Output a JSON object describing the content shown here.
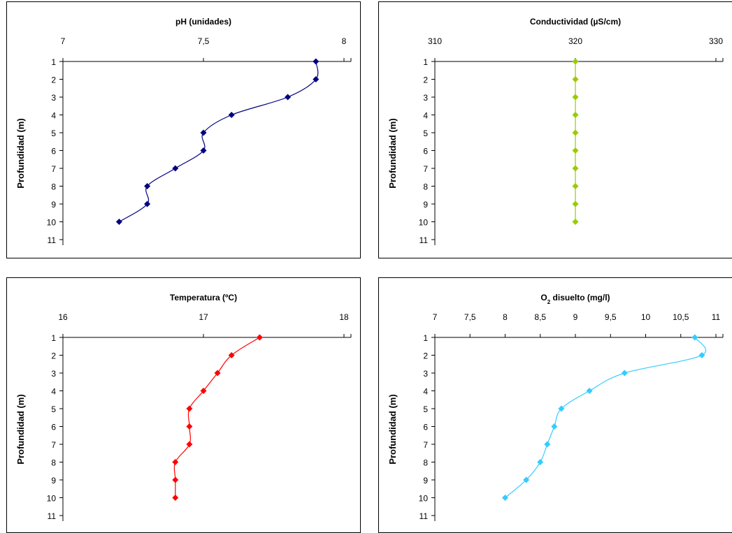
{
  "chart_data": [
    {
      "type": "line",
      "title": "pH (unidades)",
      "ylabel": "Profundidad (m)",
      "xlabel": "",
      "x_ticks": [
        "7",
        "7,5",
        "8"
      ],
      "xlim": [
        7,
        8
      ],
      "y_ticks": [
        "1",
        "2",
        "3",
        "4",
        "5",
        "6",
        "7",
        "8",
        "9",
        "10",
        "11"
      ],
      "ylim": [
        1,
        11
      ],
      "y_reversed": true,
      "grid": false,
      "color": "#00007f",
      "series": [
        {
          "depth": [
            1,
            2,
            3,
            4,
            5,
            6,
            7,
            8,
            9,
            10
          ],
          "values": [
            7.9,
            7.9,
            7.8,
            7.6,
            7.5,
            7.5,
            7.4,
            7.3,
            7.3,
            7.2
          ]
        }
      ]
    },
    {
      "type": "line",
      "title": "Conductividad (µS/cm)",
      "ylabel": "Profundidad (m)",
      "xlabel": "",
      "x_ticks": [
        "310",
        "320",
        "330"
      ],
      "xlim": [
        310,
        330
      ],
      "y_ticks": [
        "1",
        "2",
        "3",
        "4",
        "5",
        "6",
        "7",
        "8",
        "9",
        "10",
        "11"
      ],
      "ylim": [
        1,
        11
      ],
      "y_reversed": true,
      "grid": false,
      "color": "#99cc00",
      "series": [
        {
          "depth": [
            1,
            2,
            3,
            4,
            5,
            6,
            7,
            8,
            9,
            10
          ],
          "values": [
            320,
            320,
            320,
            320,
            320,
            320,
            320,
            320,
            320,
            320
          ]
        }
      ]
    },
    {
      "type": "line",
      "title": "Temperatura (ºC)",
      "ylabel": "Profundidad (m)",
      "xlabel": "",
      "x_ticks": [
        "16",
        "17",
        "18"
      ],
      "xlim": [
        16,
        18
      ],
      "y_ticks": [
        "1",
        "2",
        "3",
        "4",
        "5",
        "6",
        "7",
        "8",
        "9",
        "10",
        "11"
      ],
      "ylim": [
        1,
        11
      ],
      "y_reversed": true,
      "grid": false,
      "color": "#ff0000",
      "series": [
        {
          "depth": [
            1,
            2,
            3,
            4,
            5,
            6,
            7,
            8,
            9,
            10
          ],
          "values": [
            17.4,
            17.2,
            17.1,
            17.0,
            16.9,
            16.9,
            16.9,
            16.8,
            16.8,
            16.8
          ]
        }
      ]
    },
    {
      "type": "line",
      "title": "O2 disuelto (mg/l)",
      "ylabel": "Profundidad (m)",
      "xlabel": "",
      "x_ticks": [
        "7",
        "7,5",
        "8",
        "8,5",
        "9",
        "9,5",
        "10",
        "10,5",
        "11"
      ],
      "xlim": [
        7,
        11
      ],
      "y_ticks": [
        "1",
        "2",
        "3",
        "4",
        "5",
        "6",
        "7",
        "8",
        "9",
        "10",
        "11"
      ],
      "ylim": [
        1,
        11
      ],
      "y_reversed": true,
      "grid": false,
      "color": "#33ccff",
      "series": [
        {
          "depth": [
            1,
            2,
            3,
            4,
            5,
            6,
            7,
            8,
            9,
            10
          ],
          "values": [
            10.7,
            10.8,
            9.7,
            9.2,
            8.8,
            8.7,
            8.6,
            8.5,
            8.3,
            8.0
          ]
        }
      ]
    }
  ]
}
